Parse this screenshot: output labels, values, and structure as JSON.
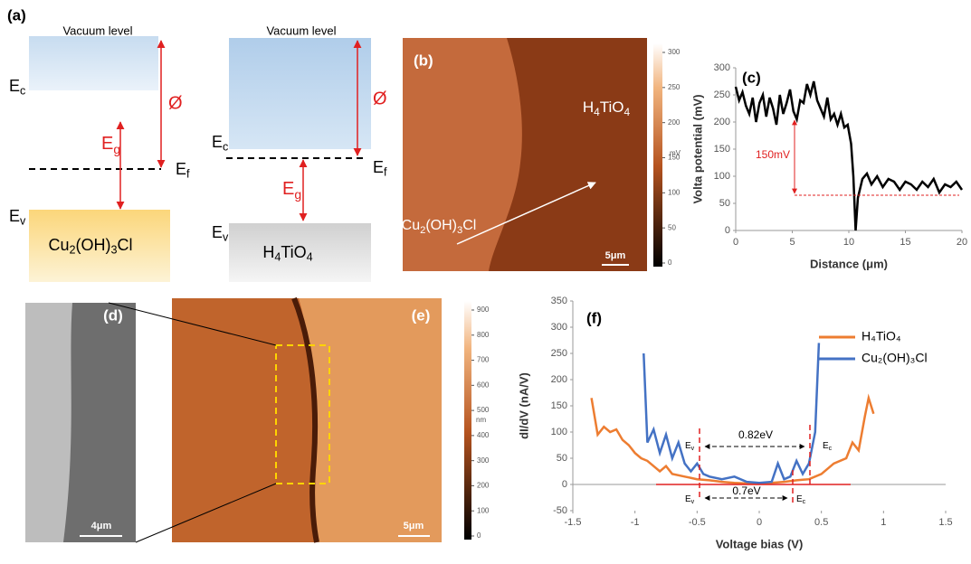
{
  "panel_a": {
    "label": "(a)",
    "left": {
      "vacuum": "Vacuum level",
      "ec": [
        "E",
        "c"
      ],
      "ef": [
        "E",
        "f"
      ],
      "ev": [
        "E",
        "v"
      ],
      "eg": [
        "E",
        "g"
      ],
      "phi": "Ø",
      "material": [
        "Cu",
        "2",
        "(OH)",
        "3",
        "Cl"
      ]
    },
    "right": {
      "vacuum": "Vacuum level",
      "ec": [
        "E",
        "c"
      ],
      "ef": [
        "E",
        "f"
      ],
      "ev": [
        "E",
        "v"
      ],
      "eg": [
        "E",
        "g"
      ],
      "phi": "Ø",
      "material": [
        "H",
        "4",
        "TiO",
        "4"
      ]
    }
  },
  "panel_b": {
    "label": "(b)",
    "region_right": [
      "H",
      "4",
      "TiO",
      "4"
    ],
    "region_left": [
      "Cu",
      "2",
      "(OH)",
      "3",
      "Cl"
    ],
    "scale_bar": "5μm",
    "colorbar_unit": "mV",
    "colorbar_ticks": [
      0,
      50,
      100,
      150,
      200,
      250,
      300
    ]
  },
  "panel_d": {
    "label": "(d)",
    "scale_bar": "4μm"
  },
  "panel_e": {
    "label": "(e)",
    "scale_bar": "5μm",
    "colorbar_unit": "nm",
    "colorbar_ticks": [
      0,
      100,
      200,
      300,
      400,
      500,
      600,
      700,
      800,
      900
    ]
  },
  "chart_data": [
    {
      "type": "line",
      "label": "(c)",
      "xlabel": "Distance (μm)",
      "ylabel": "Volta potential (mV)",
      "annotation": "150mV",
      "color": "#000000",
      "x": [
        0,
        0.3,
        0.6,
        0.9,
        1.2,
        1.5,
        1.8,
        2.1,
        2.4,
        2.7,
        3.0,
        3.3,
        3.6,
        3.9,
        4.2,
        4.5,
        4.8,
        5.1,
        5.4,
        5.7,
        6.0,
        6.3,
        6.6,
        6.9,
        7.2,
        7.5,
        7.8,
        8.1,
        8.4,
        8.7,
        9.0,
        9.3,
        9.6,
        9.9,
        10.2,
        10.4,
        10.6,
        10.8,
        11.2,
        11.6,
        12,
        12.5,
        13,
        13.5,
        14,
        14.5,
        15,
        15.5,
        16,
        16.5,
        17,
        17.5,
        18,
        18.5,
        19,
        19.5,
        20
      ],
      "values": [
        265,
        240,
        255,
        230,
        215,
        245,
        200,
        235,
        250,
        210,
        245,
        225,
        195,
        250,
        215,
        235,
        260,
        220,
        205,
        240,
        235,
        270,
        250,
        275,
        240,
        225,
        210,
        245,
        205,
        215,
        195,
        215,
        190,
        195,
        160,
        100,
        0,
        60,
        95,
        105,
        85,
        100,
        80,
        95,
        90,
        75,
        90,
        85,
        75,
        90,
        80,
        95,
        70,
        85,
        80,
        90,
        75
      ],
      "xlim": [
        0,
        20
      ],
      "xticks": [
        0,
        5,
        10,
        15,
        20
      ],
      "ylim": [
        0,
        300
      ],
      "yticks": [
        0,
        50,
        100,
        150,
        200,
        250,
        300
      ]
    },
    {
      "type": "line",
      "label": "(f)",
      "xlabel": "Voltage bias (V)",
      "ylabel": "dI/dV (nA/V)",
      "annotations": {
        "gap_top": "0.82eV",
        "gap_bottom": "0.7eV",
        "ev_top": [
          "E",
          "v"
        ],
        "ec_top": [
          "E",
          "c"
        ],
        "ev_bottom": [
          "E",
          "v"
        ],
        "ec_bottom": [
          "E",
          "c"
        ]
      },
      "xlim": [
        -1.5,
        1.5
      ],
      "xticks": [
        -1.5,
        -1,
        -0.5,
        0,
        0.5,
        1,
        1.5
      ],
      "ylim": [
        -50,
        350
      ],
      "yticks": [
        -50,
        0,
        50,
        100,
        150,
        200,
        250,
        300,
        350
      ],
      "series": [
        {
          "name": "H₄TiO₄",
          "color": "#ed7d31",
          "x": [
            -1.35,
            -1.3,
            -1.25,
            -1.2,
            -1.15,
            -1.1,
            -1.05,
            -1.0,
            -0.95,
            -0.9,
            -0.85,
            -0.8,
            -0.75,
            -0.7,
            -0.6,
            -0.5,
            -0.4,
            -0.3,
            -0.2,
            -0.1,
            0,
            0.1,
            0.2,
            0.3,
            0.4,
            0.5,
            0.6,
            0.7,
            0.75,
            0.8,
            0.85,
            0.88,
            0.92
          ],
          "values": [
            165,
            95,
            110,
            100,
            105,
            85,
            75,
            60,
            50,
            45,
            35,
            25,
            35,
            20,
            15,
            10,
            8,
            5,
            3,
            2,
            2,
            3,
            5,
            8,
            10,
            20,
            40,
            50,
            80,
            65,
            130,
            165,
            135
          ]
        },
        {
          "name": "Cu₂(OH)₃Cl",
          "color": "#4472c4",
          "x": [
            -0.93,
            -0.9,
            -0.85,
            -0.8,
            -0.75,
            -0.7,
            -0.65,
            -0.6,
            -0.55,
            -0.5,
            -0.45,
            -0.4,
            -0.3,
            -0.2,
            -0.1,
            0,
            0.1,
            0.15,
            0.2,
            0.25,
            0.3,
            0.35,
            0.4,
            0.45,
            0.48
          ],
          "values": [
            250,
            80,
            105,
            60,
            95,
            50,
            80,
            40,
            25,
            40,
            20,
            15,
            10,
            15,
            5,
            3,
            5,
            40,
            10,
            15,
            45,
            20,
            40,
            100,
            270
          ]
        }
      ]
    }
  ]
}
